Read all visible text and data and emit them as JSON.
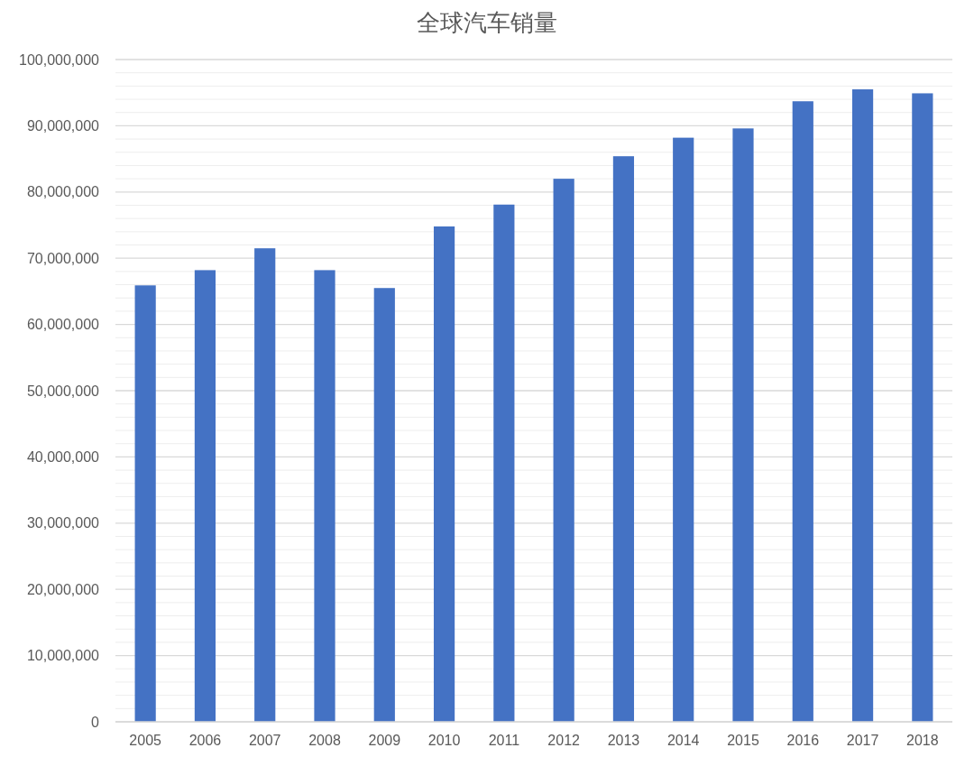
{
  "chart_data": {
    "type": "bar",
    "title": "全球汽车销量",
    "categories": [
      "2005",
      "2006",
      "2007",
      "2008",
      "2009",
      "2010",
      "2011",
      "2012",
      "2013",
      "2014",
      "2015",
      "2016",
      "2017",
      "2018"
    ],
    "values": [
      65900000,
      68200000,
      71500000,
      68200000,
      65500000,
      74800000,
      78100000,
      82000000,
      85400000,
      88200000,
      89600000,
      93700000,
      95500000,
      94900000
    ],
    "color": "#4472c4",
    "ylim": [
      0,
      100000000
    ],
    "yticks": [
      {
        "value": 0,
        "label": "0"
      },
      {
        "value": 2000000,
        "label": null
      },
      {
        "value": 4000000,
        "label": null
      },
      {
        "value": 6000000,
        "label": null
      },
      {
        "value": 8000000,
        "label": null
      },
      {
        "value": 10000000,
        "label": "10,000,000"
      },
      {
        "value": 12000000,
        "label": null
      },
      {
        "value": 14000000,
        "label": null
      },
      {
        "value": 16000000,
        "label": null
      },
      {
        "value": 18000000,
        "label": null
      },
      {
        "value": 20000000,
        "label": "20,000,000"
      },
      {
        "value": 22000000,
        "label": null
      },
      {
        "value": 24000000,
        "label": null
      },
      {
        "value": 26000000,
        "label": null
      },
      {
        "value": 28000000,
        "label": null
      },
      {
        "value": 30000000,
        "label": "30,000,000"
      },
      {
        "value": 32000000,
        "label": null
      },
      {
        "value": 34000000,
        "label": null
      },
      {
        "value": 36000000,
        "label": null
      },
      {
        "value": 38000000,
        "label": null
      },
      {
        "value": 40000000,
        "label": "40,000,000"
      },
      {
        "value": 42000000,
        "label": null
      },
      {
        "value": 44000000,
        "label": null
      },
      {
        "value": 46000000,
        "label": null
      },
      {
        "value": 48000000,
        "label": null
      },
      {
        "value": 50000000,
        "label": "50,000,000"
      },
      {
        "value": 52000000,
        "label": null
      },
      {
        "value": 54000000,
        "label": null
      },
      {
        "value": 56000000,
        "label": null
      },
      {
        "value": 58000000,
        "label": null
      },
      {
        "value": 60000000,
        "label": "60,000,000"
      },
      {
        "value": 62000000,
        "label": null
      },
      {
        "value": 64000000,
        "label": null
      },
      {
        "value": 66000000,
        "label": null
      },
      {
        "value": 68000000,
        "label": null
      },
      {
        "value": 70000000,
        "label": "70,000,000"
      },
      {
        "value": 72000000,
        "label": null
      },
      {
        "value": 74000000,
        "label": null
      },
      {
        "value": 76000000,
        "label": null
      },
      {
        "value": 78000000,
        "label": null
      },
      {
        "value": 80000000,
        "label": "80,000,000"
      },
      {
        "value": 82000000,
        "label": null
      },
      {
        "value": 84000000,
        "label": null
      },
      {
        "value": 86000000,
        "label": null
      },
      {
        "value": 88000000,
        "label": null
      },
      {
        "value": 90000000,
        "label": "90,000,000"
      },
      {
        "value": 92000000,
        "label": null
      },
      {
        "value": 94000000,
        "label": null
      },
      {
        "value": 96000000,
        "label": null
      },
      {
        "value": 98000000,
        "label": null
      },
      {
        "value": 100000000,
        "label": "100,000,000"
      }
    ],
    "grid": "y"
  }
}
